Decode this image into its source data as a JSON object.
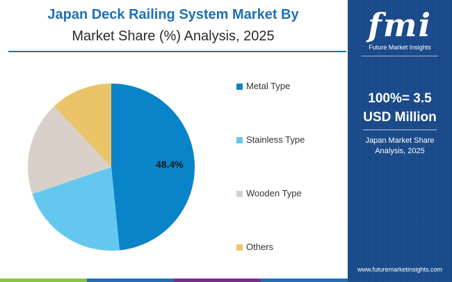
{
  "header": {
    "title_line1": "Japan Deck Railing System Market By",
    "title_line2": "Market Share (%) Analysis, 2025"
  },
  "chart_data": {
    "type": "pie",
    "title": "Japan Deck Railing System Market By Market Share (%) Analysis, 2025",
    "categories": [
      "Metal Type",
      "Stainless Type",
      "Wooden Type",
      "Others"
    ],
    "values": [
      48.4,
      21.4,
      18.2,
      12.0
    ],
    "colors": [
      "#0a84c8",
      "#64c8ee",
      "#d9d1c9",
      "#ebc46a"
    ],
    "data_labels": [
      "48.4%",
      "",
      "",
      ""
    ],
    "legend_position": "right",
    "start_angle_deg": 0,
    "direction": "clockwise"
  },
  "panel": {
    "logo_text": "fmi",
    "logo_subtitle": "Future Market Insights",
    "total_value": "100%= 3.5 USD Million",
    "total_line1": "100%= 3.5",
    "total_line2": "USD Million",
    "note_line1": "Japan Market Share",
    "note_line2": "Analysis, 2025",
    "website": "www.futuremarketinsights.com",
    "background_color": "#1a4a8a"
  },
  "bottom_bar_colors": [
    "#8bc53f",
    "#1f6fb5",
    "#7b2d8e",
    "#1f6fb5"
  ]
}
